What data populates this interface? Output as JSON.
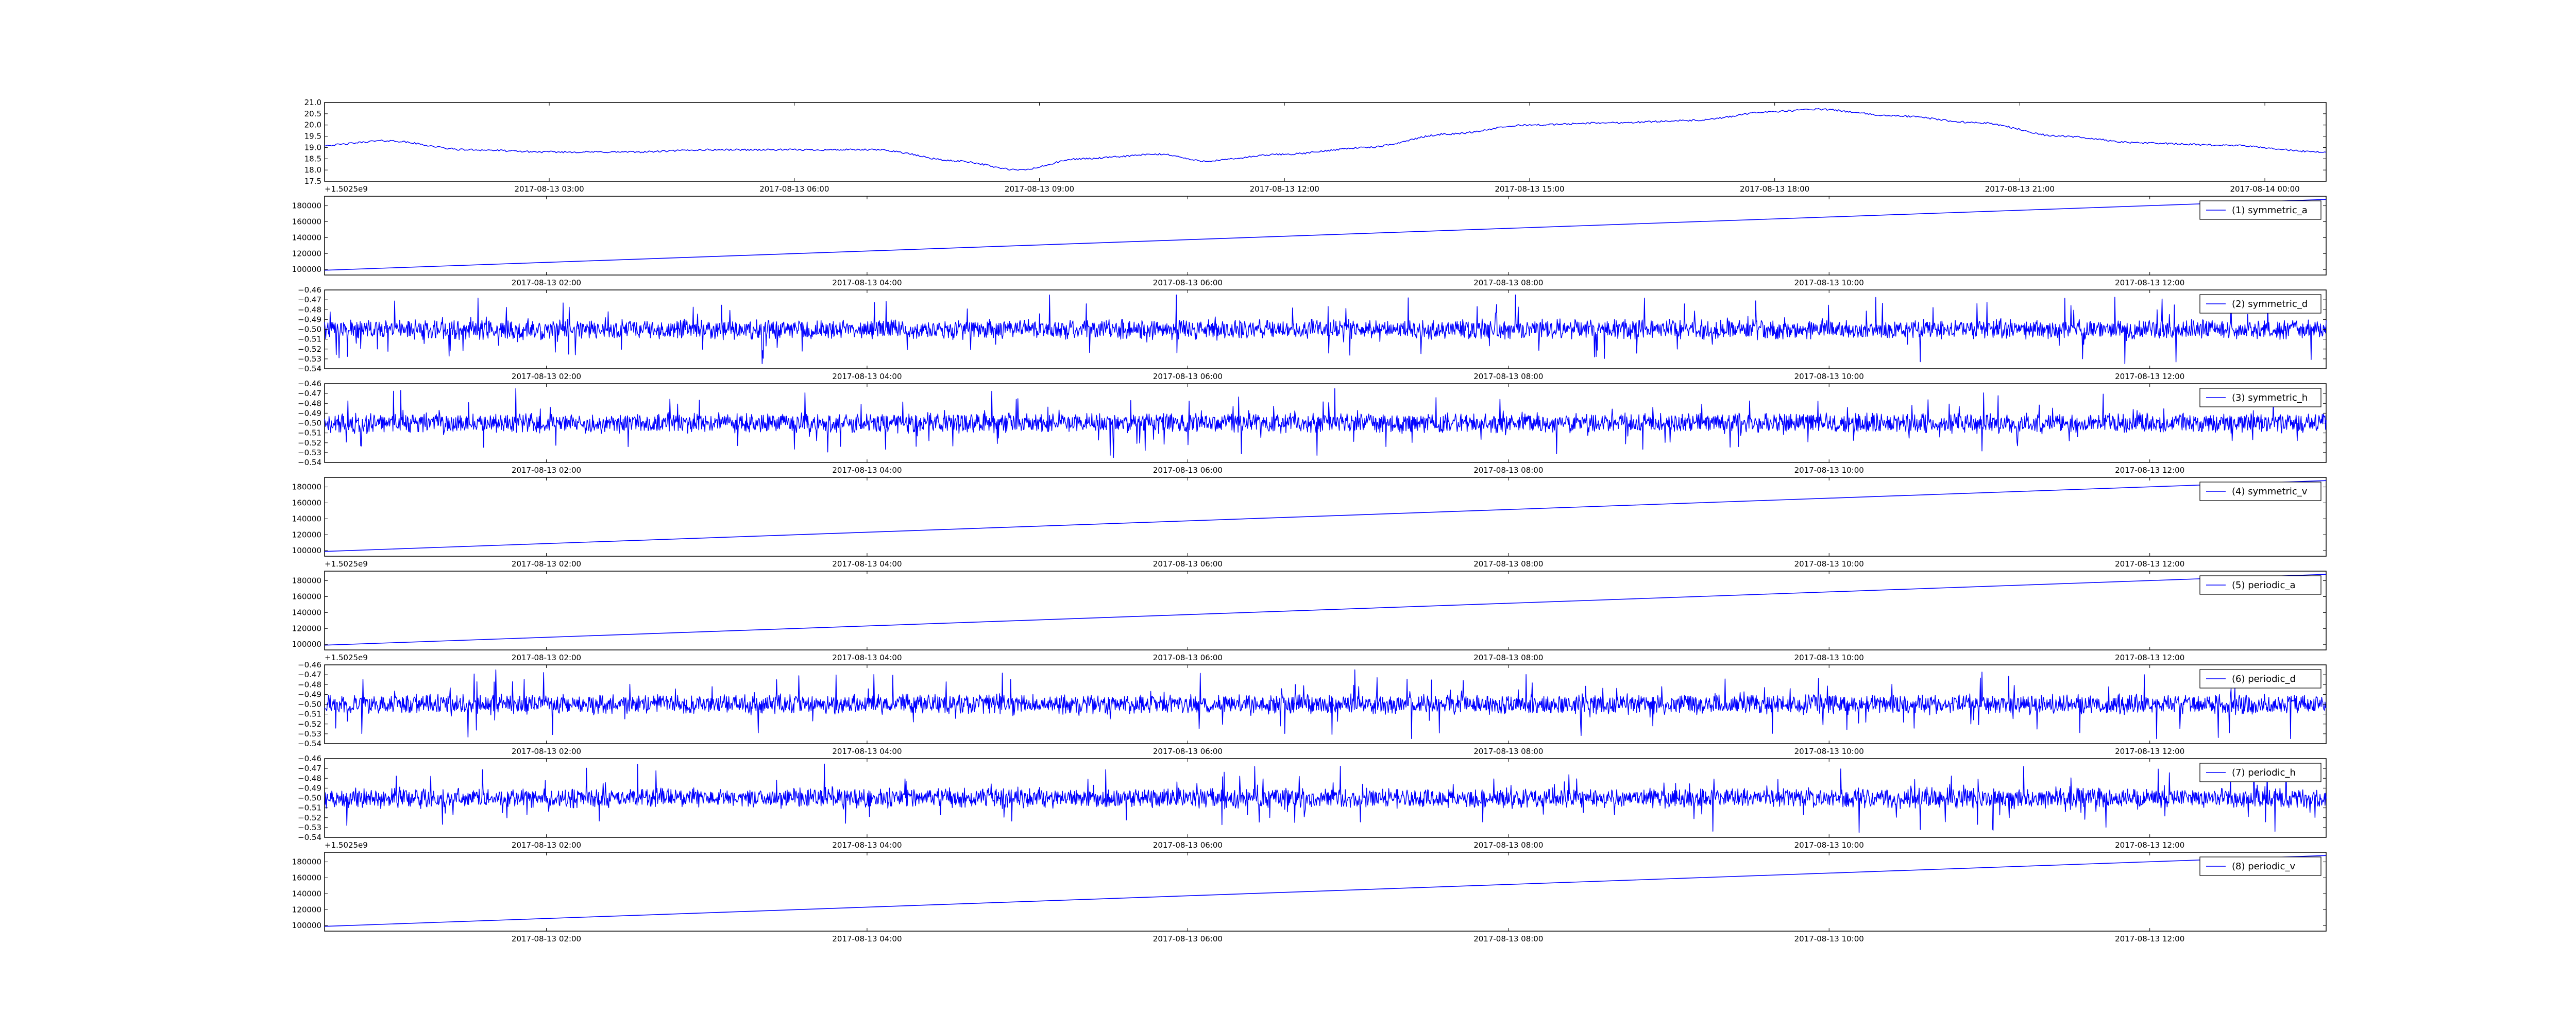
{
  "figure": {
    "title": "",
    "line_color": "#0000ff",
    "frame_color": "#000000",
    "background": "#ffffff"
  },
  "chart_data": [
    {
      "type": "line",
      "title": "",
      "xlabel": "",
      "ylabel": "",
      "yticks": [
        "17.5",
        "18.0",
        "18.5",
        "19.0",
        "19.5",
        "20.0",
        "20.5",
        "21.0"
      ],
      "ylim": [
        17.5,
        21.0
      ],
      "xticks": [
        "2017-08-13 03:00",
        "2017-08-13 06:00",
        "2017-08-13 09:00",
        "2017-08-13 12:00",
        "2017-08-13 15:00",
        "2017-08-13 18:00",
        "2017-08-13 21:00",
        "2017-08-14 00:00"
      ],
      "xlim": [
        "2017-08-13 00:15",
        "2017-08-14 00:45"
      ],
      "offset_text": "+1.5025e9",
      "legend": null,
      "pattern": "smooth",
      "x": [
        "2017-08-13 00:15",
        "2017-08-13 01:00",
        "2017-08-13 02:00",
        "2017-08-13 03:00",
        "2017-08-13 04:00",
        "2017-08-13 05:00",
        "2017-08-13 06:00",
        "2017-08-13 07:00",
        "2017-08-13 08:00",
        "2017-08-13 08:45",
        "2017-08-13 09:30",
        "2017-08-13 10:30",
        "2017-08-13 11:00",
        "2017-08-13 12:00",
        "2017-08-13 13:00",
        "2017-08-13 14:00",
        "2017-08-13 15:00",
        "2017-08-13 16:00",
        "2017-08-13 17:00",
        "2017-08-13 18:00",
        "2017-08-13 18:30",
        "2017-08-13 19:30",
        "2017-08-13 20:30",
        "2017-08-13 21:30",
        "2017-08-13 22:30",
        "2017-08-13 23:30",
        "2017-08-14 00:45"
      ],
      "values": [
        19.1,
        19.3,
        18.9,
        18.8,
        18.8,
        18.9,
        18.9,
        18.9,
        18.4,
        18.0,
        18.5,
        18.7,
        18.4,
        18.7,
        19.0,
        19.6,
        20.0,
        20.1,
        20.2,
        20.6,
        20.7,
        20.4,
        20.1,
        19.5,
        19.2,
        19.1,
        18.8
      ]
    },
    {
      "type": "line",
      "title": "",
      "xlabel": "",
      "ylabel": "",
      "yticks": [
        "100000",
        "120000",
        "140000",
        "160000",
        "180000"
      ],
      "ylim": [
        93000,
        192000
      ],
      "xticks": [
        "2017-08-13 02:00",
        "2017-08-13 04:00",
        "2017-08-13 06:00",
        "2017-08-13 08:00",
        "2017-08-13 10:00",
        "2017-08-13 12:00"
      ],
      "xlim": [
        "2017-08-13 00:37",
        "2017-08-13 13:06"
      ],
      "offset_text": "",
      "legend": "(1) symmetric_a",
      "legend_style": "boxed",
      "pattern": "linear",
      "x": [
        "2017-08-13 00:37",
        "2017-08-13 13:06"
      ],
      "values": [
        99000,
        188000
      ]
    },
    {
      "type": "line",
      "title": "",
      "xlabel": "",
      "ylabel": "",
      "yticks": [
        "-0.54",
        "-0.53",
        "-0.52",
        "-0.51",
        "-0.50",
        "-0.49",
        "-0.48",
        "-0.47",
        "-0.46"
      ],
      "ylim": [
        -0.54,
        -0.46
      ],
      "xticks": [
        "2017-08-13 02:00",
        "2017-08-13 04:00",
        "2017-08-13 06:00",
        "2017-08-13 08:00",
        "2017-08-13 10:00",
        "2017-08-13 12:00"
      ],
      "xlim": [
        "2017-08-13 00:37",
        "2017-08-13 13:06"
      ],
      "offset_text": "",
      "legend": "(2) symmetric_d",
      "legend_style": "boxed",
      "pattern": "noise",
      "center": -0.5,
      "range": [
        -0.535,
        -0.465
      ]
    },
    {
      "type": "line",
      "title": "",
      "xlabel": "",
      "ylabel": "",
      "yticks": [
        "-0.54",
        "-0.53",
        "-0.52",
        "-0.51",
        "-0.50",
        "-0.49",
        "-0.48",
        "-0.47",
        "-0.46"
      ],
      "ylim": [
        -0.54,
        -0.46
      ],
      "xticks": [
        "2017-08-13 02:00",
        "2017-08-13 04:00",
        "2017-08-13 06:00",
        "2017-08-13 08:00",
        "2017-08-13 10:00",
        "2017-08-13 12:00"
      ],
      "xlim": [
        "2017-08-13 00:37",
        "2017-08-13 13:06"
      ],
      "offset_text": "",
      "legend": "(3) symmetric_h",
      "legend_style": "boxed",
      "pattern": "noise",
      "center": -0.5,
      "range": [
        -0.535,
        -0.465
      ]
    },
    {
      "type": "line",
      "title": "",
      "xlabel": "",
      "ylabel": "",
      "yticks": [
        "100000",
        "120000",
        "140000",
        "160000",
        "180000"
      ],
      "ylim": [
        93000,
        192000
      ],
      "xticks": [
        "2017-08-13 02:00",
        "2017-08-13 04:00",
        "2017-08-13 06:00",
        "2017-08-13 08:00",
        "2017-08-13 10:00",
        "2017-08-13 12:00"
      ],
      "xlim": [
        "2017-08-13 00:37",
        "2017-08-13 13:06"
      ],
      "offset_text": "+1.5025e9",
      "legend": "(4) symmetric_v",
      "legend_style": "boxed",
      "pattern": "linear",
      "x": [
        "2017-08-13 00:37",
        "2017-08-13 13:06"
      ],
      "values": [
        99000,
        188000
      ]
    },
    {
      "type": "line",
      "title": "",
      "xlabel": "",
      "ylabel": "",
      "yticks": [
        "100000",
        "120000",
        "140000",
        "160000",
        "180000"
      ],
      "ylim": [
        93000,
        192000
      ],
      "xticks": [
        "2017-08-13 02:00",
        "2017-08-13 04:00",
        "2017-08-13 06:00",
        "2017-08-13 08:00",
        "2017-08-13 10:00",
        "2017-08-13 12:00"
      ],
      "xlim": [
        "2017-08-13 00:37",
        "2017-08-13 13:06"
      ],
      "offset_text": "+1.5025e9",
      "legend": "(5) periodic_a",
      "legend_style": "boxed",
      "pattern": "linear",
      "x": [
        "2017-08-13 00:37",
        "2017-08-13 13:06"
      ],
      "values": [
        99000,
        188000
      ]
    },
    {
      "type": "line",
      "title": "",
      "xlabel": "",
      "ylabel": "",
      "yticks": [
        "-0.54",
        "-0.53",
        "-0.52",
        "-0.51",
        "-0.50",
        "-0.49",
        "-0.48",
        "-0.47",
        "-0.46"
      ],
      "ylim": [
        -0.54,
        -0.46
      ],
      "xticks": [
        "2017-08-13 02:00",
        "2017-08-13 04:00",
        "2017-08-13 06:00",
        "2017-08-13 08:00",
        "2017-08-13 10:00",
        "2017-08-13 12:00"
      ],
      "xlim": [
        "2017-08-13 00:37",
        "2017-08-13 13:06"
      ],
      "offset_text": "",
      "legend": "(6) periodic_d",
      "legend_style": "boxed",
      "pattern": "noise",
      "center": -0.5,
      "range": [
        -0.535,
        -0.465
      ]
    },
    {
      "type": "line",
      "title": "",
      "xlabel": "",
      "ylabel": "",
      "yticks": [
        "-0.54",
        "-0.53",
        "-0.52",
        "-0.51",
        "-0.50",
        "-0.49",
        "-0.48",
        "-0.47",
        "-0.46"
      ],
      "ylim": [
        -0.54,
        -0.46
      ],
      "xticks": [
        "2017-08-13 02:00",
        "2017-08-13 04:00",
        "2017-08-13 06:00",
        "2017-08-13 08:00",
        "2017-08-13 10:00",
        "2017-08-13 12:00"
      ],
      "xlim": [
        "2017-08-13 00:37",
        "2017-08-13 13:06"
      ],
      "offset_text": "+1.5025e9",
      "legend": "(7) periodic_h",
      "legend_style": "boxed",
      "pattern": "noise",
      "center": -0.5,
      "range": [
        -0.535,
        -0.465
      ]
    },
    {
      "type": "line",
      "title": "",
      "xlabel": "",
      "ylabel": "",
      "yticks": [
        "100000",
        "120000",
        "140000",
        "160000",
        "180000"
      ],
      "ylim": [
        93000,
        192000
      ],
      "xticks": [
        "2017-08-13 02:00",
        "2017-08-13 04:00",
        "2017-08-13 06:00",
        "2017-08-13 08:00",
        "2017-08-13 10:00",
        "2017-08-13 12:00"
      ],
      "xlim": [
        "2017-08-13 00:37",
        "2017-08-13 13:06"
      ],
      "offset_text": "",
      "legend": "(8) periodic_v",
      "legend_style": "boxed",
      "pattern": "linear",
      "x": [
        "2017-08-13 00:37",
        "2017-08-13 13:06"
      ],
      "values": [
        99000,
        188000
      ]
    }
  ]
}
